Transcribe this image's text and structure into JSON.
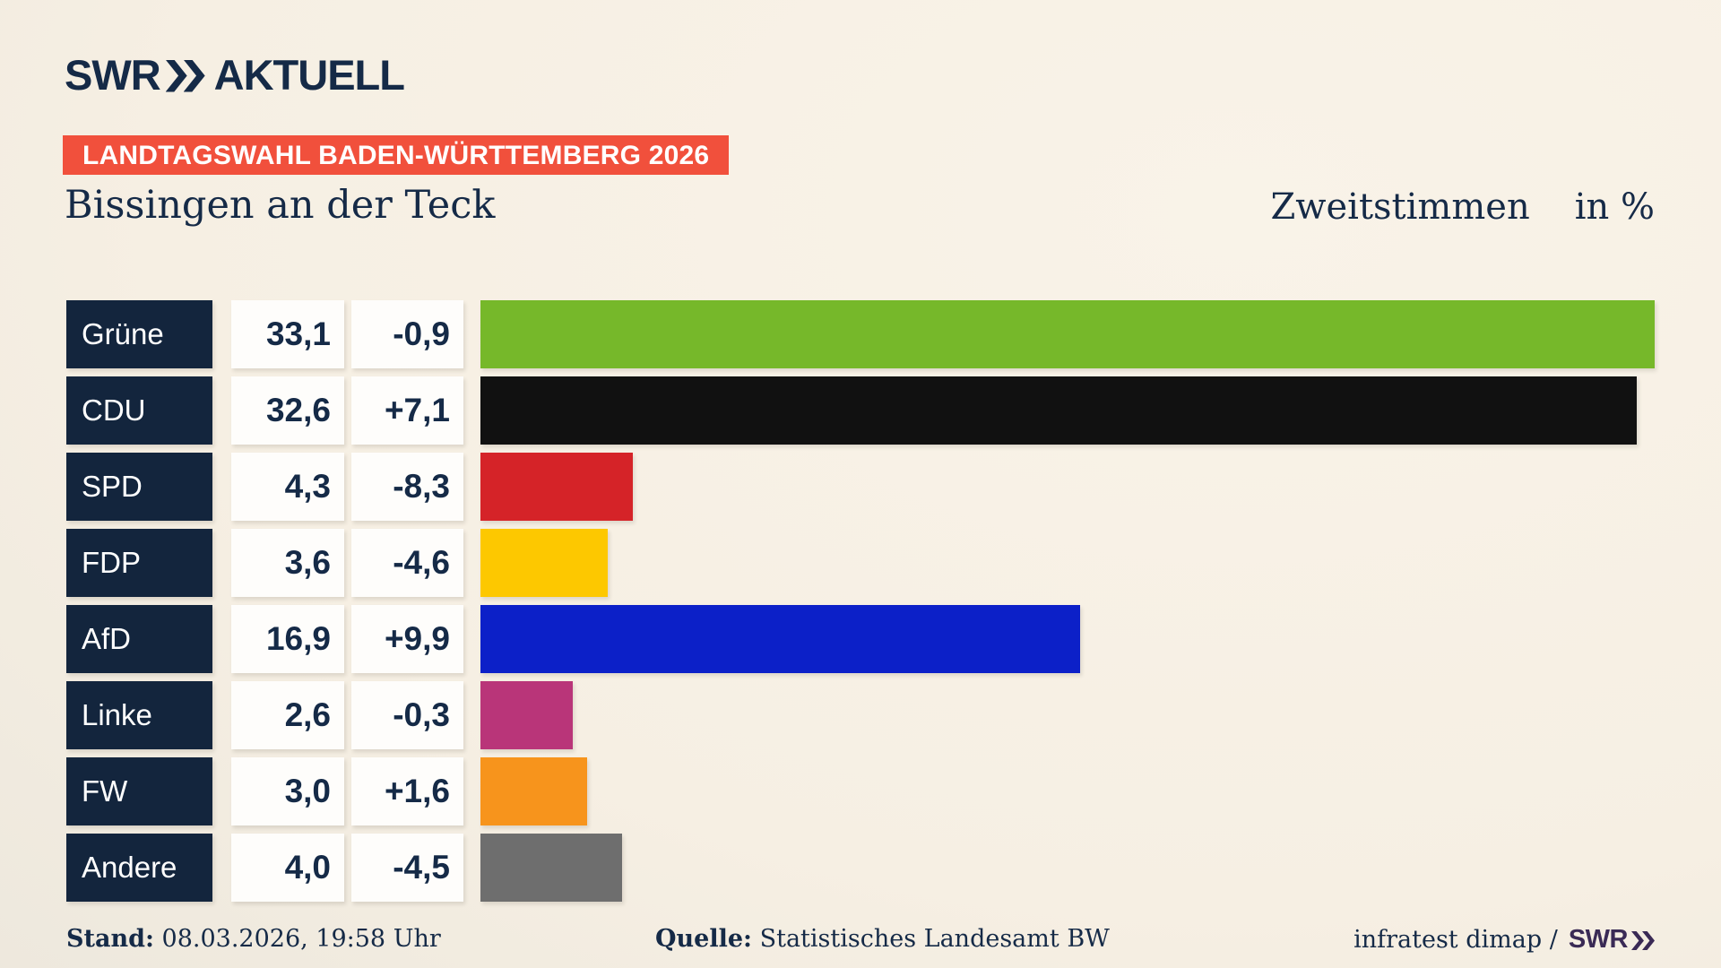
{
  "brand": {
    "logo_text": "SWR",
    "logo_suffix": "AKTUELL"
  },
  "badge": {
    "label": "LANDTAGSWAHL BADEN-WÜRTTEMBERG 2026",
    "bg": "#f1503c"
  },
  "header": {
    "title": "Bissingen an der Teck",
    "subtitle": "Zweitstimmen",
    "subtitle_unit": "in %"
  },
  "chart_data": {
    "type": "bar",
    "orientation": "horizontal",
    "title": "Zweitstimmen in %",
    "unit": "%",
    "categories": [
      "Grüne",
      "CDU",
      "SPD",
      "FDP",
      "AfD",
      "Linke",
      "FW",
      "Andere"
    ],
    "values": [
      33.1,
      32.6,
      4.3,
      3.6,
      16.9,
      2.6,
      3.0,
      4.0
    ],
    "value_labels": [
      "33,1",
      "32,6",
      "4,3",
      "3,6",
      "16,9",
      "2,6",
      "3,0",
      "4,0"
    ],
    "deltas": [
      -0.9,
      7.1,
      -8.3,
      -4.6,
      9.9,
      -0.3,
      1.6,
      -4.5
    ],
    "delta_labels": [
      "-0,9",
      "+7,1",
      "-8,3",
      "-4,6",
      "+9,9",
      "-0,3",
      "+1,6",
      "-4,5"
    ],
    "bar_colors": [
      "#76b82a",
      "#111111",
      "#d52328",
      "#fdc800",
      "#0c20c8",
      "#b93579",
      "#f7941c",
      "#6e6e6e"
    ],
    "xlim": [
      0,
      33.1
    ],
    "legend": "none",
    "grid": false
  },
  "colors": {
    "navy_text": "#152a47",
    "label_box": "#13253d",
    "badge_red": "#f1503c",
    "background_cream": "#f6efe3",
    "footer_logo_purple": "#3a2a55"
  },
  "footer": {
    "stand_label": "Stand:",
    "stand_value": "08.03.2026, 19:58 Uhr",
    "quelle_label": "Quelle:",
    "quelle_value": "Statistisches Landesamt BW",
    "credit": "infratest dimap /",
    "credit_logo": "SWR"
  }
}
